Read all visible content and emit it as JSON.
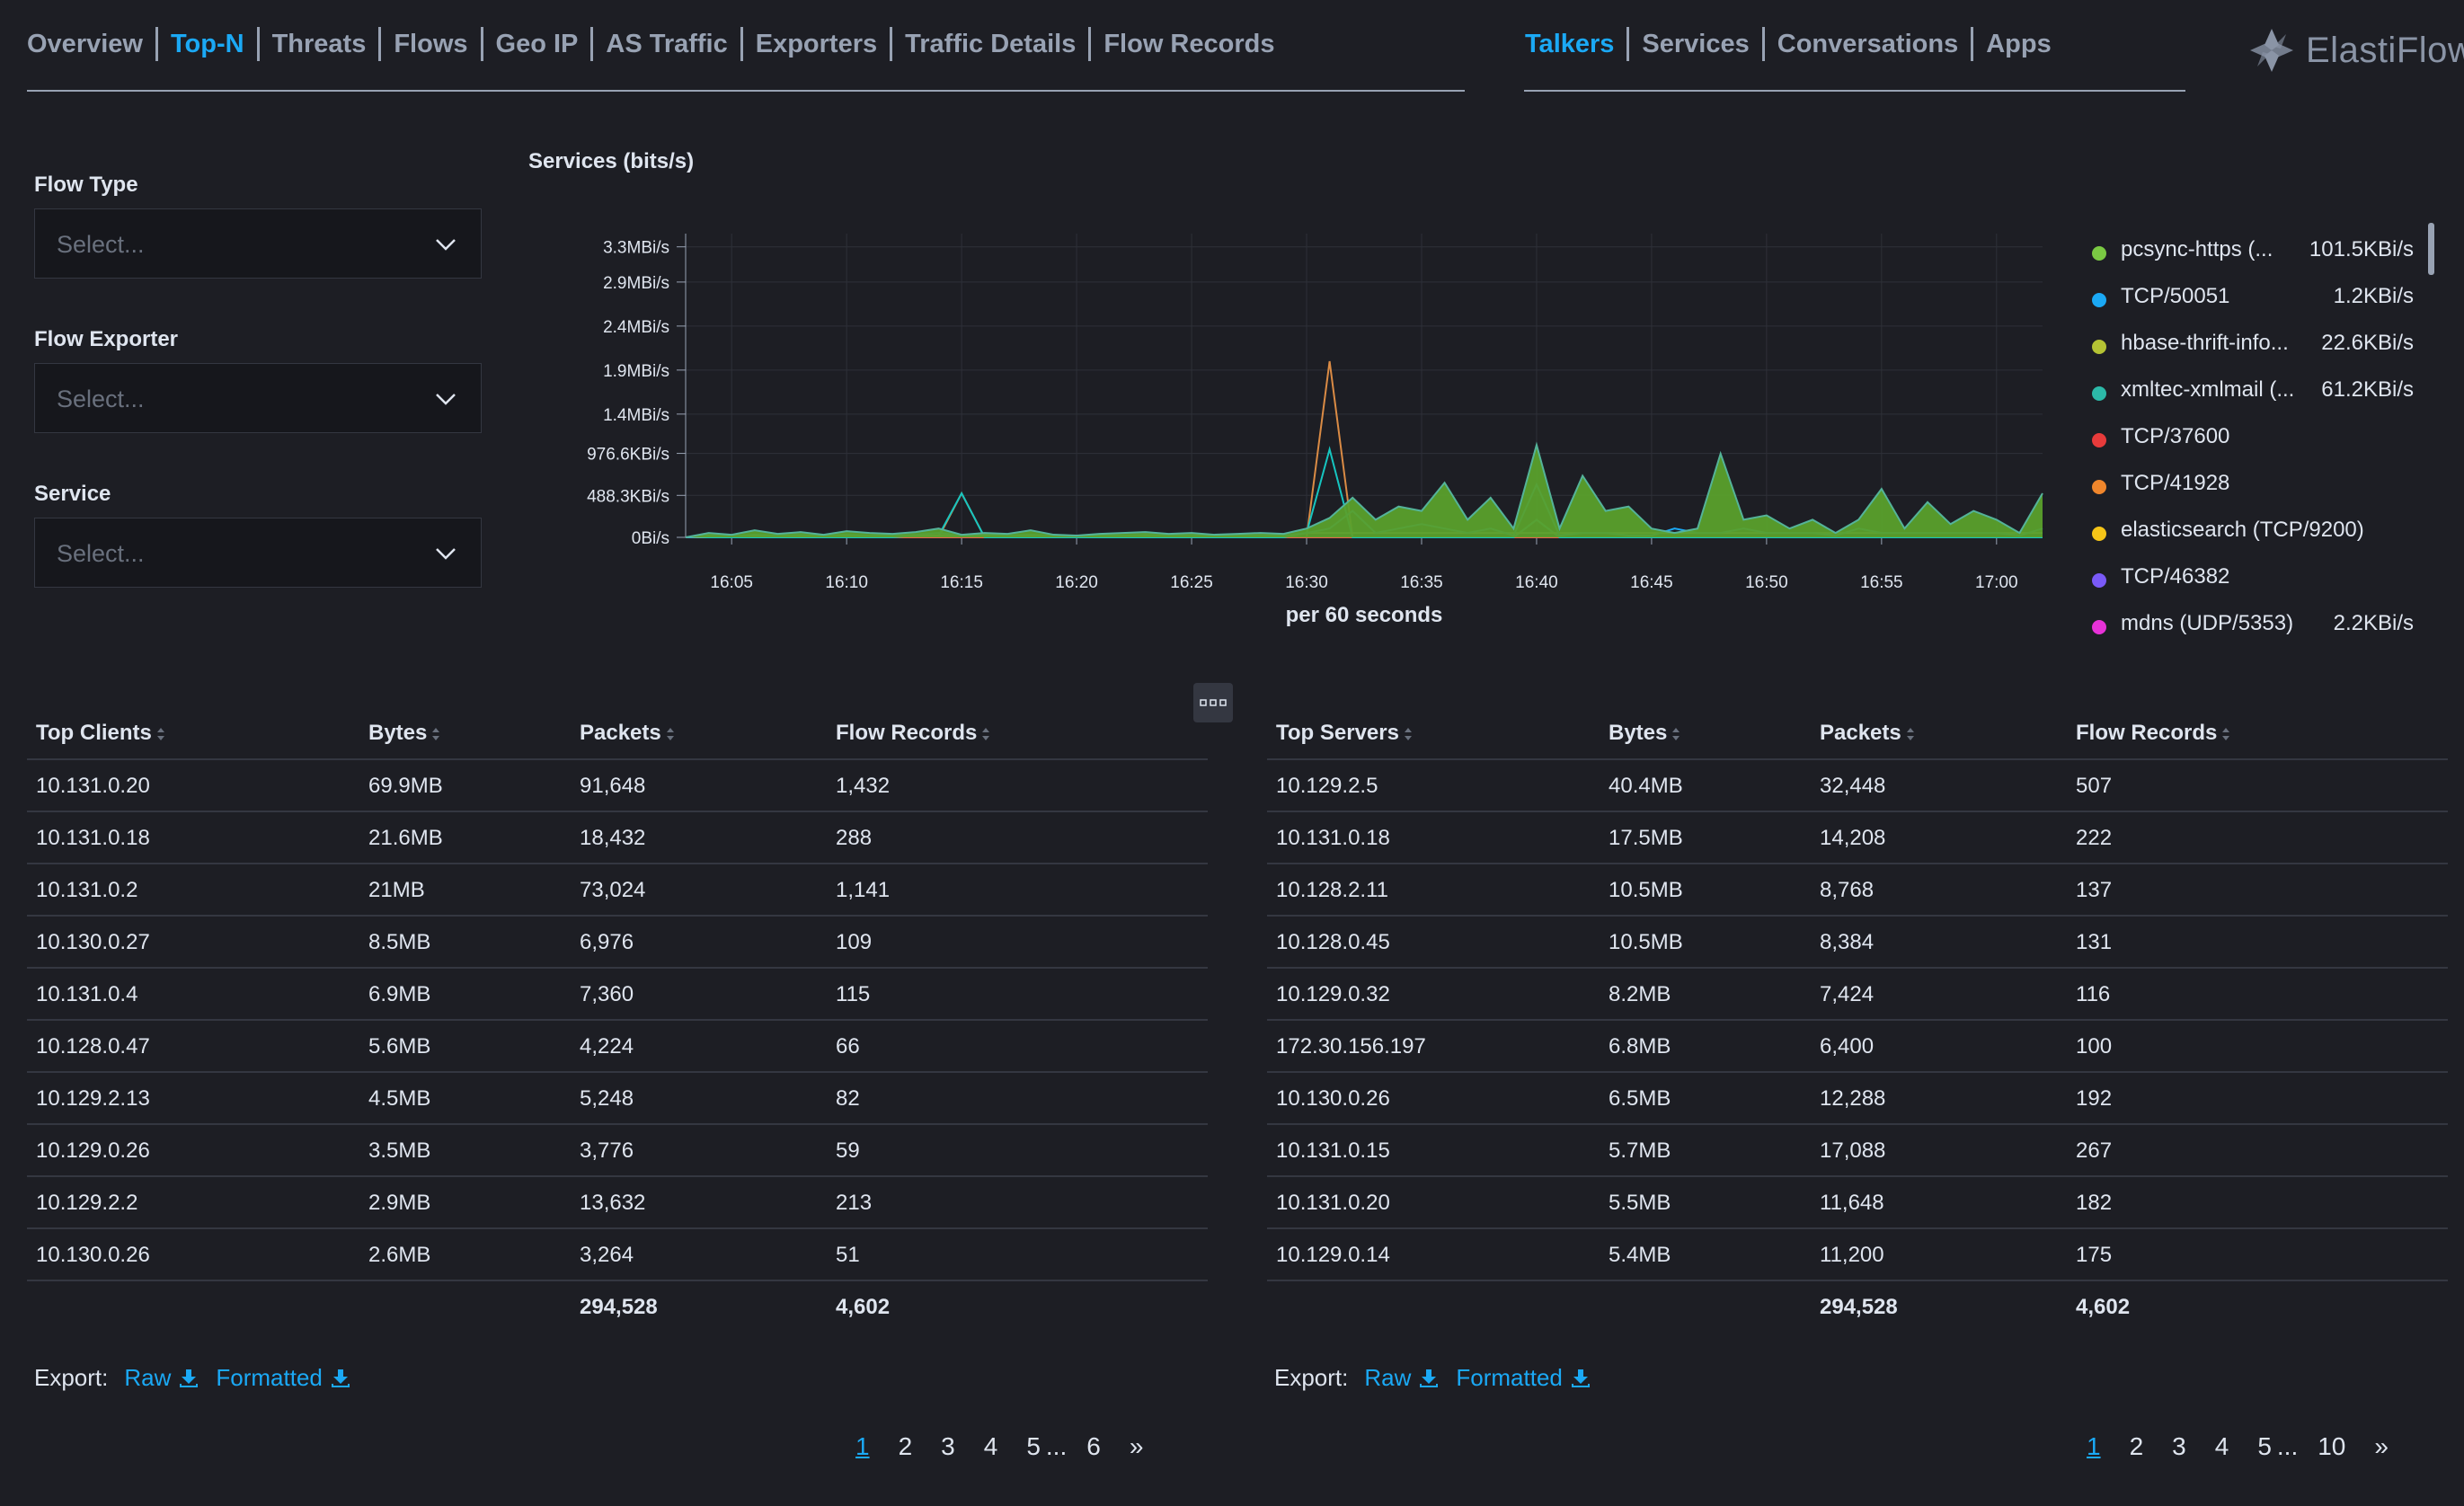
{
  "nav_left": [
    "Overview",
    "Top-N",
    "Threats",
    "Flows",
    "Geo IP",
    "AS Traffic",
    "Exporters",
    "Traffic Details",
    "Flow Records"
  ],
  "nav_right": [
    "Talkers",
    "Services",
    "Conversations",
    "Apps"
  ],
  "brand": "ElastiFlow",
  "filters": [
    {
      "label": "Flow Type",
      "placeholder": "Select..."
    },
    {
      "label": "Flow Exporter",
      "placeholder": "Select..."
    },
    {
      "label": "Service",
      "placeholder": "Select..."
    }
  ],
  "chart_data": {
    "type": "area",
    "title": "Services (bits/s)",
    "xlabel": "per 60 seconds",
    "ylabel": "",
    "y_tick_labels": [
      "0Bi/s",
      "488.3KBi/s",
      "976.6KBi/s",
      "1.4MBi/s",
      "1.9MBi/s",
      "2.4MBi/s",
      "2.9MBi/s",
      "3.3MBi/s"
    ],
    "y_tick_values": [
      0,
      0.4768,
      0.9537,
      1.4,
      1.9,
      2.4,
      2.9,
      3.3
    ],
    "ylim": [
      0,
      3.45
    ],
    "y_unit": "MBi/s",
    "x_tick_labels": [
      "16:05",
      "16:10",
      "16:15",
      "16:20",
      "16:25",
      "16:30",
      "16:35",
      "16:40",
      "16:45",
      "16:50",
      "16:55",
      "17:00"
    ],
    "x_start": "16:03",
    "x_end": "17:02",
    "x": [
      "16:03",
      "16:04",
      "16:05",
      "16:06",
      "16:07",
      "16:08",
      "16:09",
      "16:10",
      "16:11",
      "16:12",
      "16:13",
      "16:14",
      "16:15",
      "16:16",
      "16:17",
      "16:18",
      "16:19",
      "16:20",
      "16:21",
      "16:22",
      "16:23",
      "16:24",
      "16:25",
      "16:26",
      "16:27",
      "16:28",
      "16:29",
      "16:30",
      "16:31",
      "16:32",
      "16:33",
      "16:34",
      "16:35",
      "16:36",
      "16:37",
      "16:38",
      "16:39",
      "16:40",
      "16:41",
      "16:42",
      "16:43",
      "16:44",
      "16:45",
      "16:46",
      "16:47",
      "16:48",
      "16:49",
      "16:50",
      "16:51",
      "16:52",
      "16:53",
      "16:54",
      "16:55",
      "16:56",
      "16:57",
      "16:58",
      "16:59",
      "17:00",
      "17:01",
      "17:02"
    ],
    "grid": true,
    "legend_position": "right",
    "series": [
      {
        "name": "pcsync-https (...",
        "color": "#54b399",
        "values": [
          0,
          0.05,
          0.03,
          0.08,
          0.04,
          0.06,
          0.03,
          0.07,
          0.05,
          0.04,
          0.06,
          0.1,
          0.03,
          0.05,
          0.04,
          0.08,
          0.03,
          0.02,
          0.04,
          0.05,
          0.06,
          0.04,
          0.05,
          0.03,
          0.04,
          0.05,
          0.04,
          0.1,
          0.22,
          0.45,
          0.2,
          0.35,
          0.3,
          0.62,
          0.2,
          0.45,
          0.1,
          1.05,
          0.1,
          0.7,
          0.3,
          0.35,
          0.1,
          0.05,
          0.1,
          0.95,
          0.2,
          0.25,
          0.1,
          0.2,
          0.05,
          0.2,
          0.55,
          0.1,
          0.4,
          0.15,
          0.3,
          0.2,
          0.05,
          0.5
        ]
      },
      {
        "name": "TCP/50051",
        "color": "#1ba9f5",
        "values": [
          0,
          0.02,
          0.01,
          0.03,
          0.02,
          0.03,
          0.02,
          0.03,
          0.02,
          0.02,
          0.03,
          0.05,
          0.02,
          0.03,
          0.02,
          0.03,
          0.02,
          0.01,
          0.02,
          0.02,
          0.03,
          0.02,
          0.02,
          0.02,
          0.02,
          0.02,
          0.02,
          0.05,
          0.1,
          0.3,
          0.05,
          0.1,
          0.15,
          0.1,
          0.05,
          0.1,
          0.02,
          0.6,
          0.02,
          0.05,
          0.05,
          0.02,
          0.02,
          0.1,
          0.05,
          0.05,
          0.1,
          0.05,
          0.05,
          0.05,
          0.02,
          0.1,
          0.05,
          0.05,
          0.05,
          0.05,
          0.05,
          0.05,
          0.02,
          0.1
        ]
      },
      {
        "name": "hbase-thrift-info...",
        "color": "#b9a888",
        "values": [
          0,
          0.01,
          0.01,
          0.02,
          0.01,
          0.01,
          0.01,
          0.02,
          0.01,
          0.01,
          0.02,
          0.02,
          0.01,
          0.02,
          0.01,
          0.02,
          0.01,
          0.01,
          0.01,
          0.01,
          0.02,
          0.01,
          0.01,
          0.01,
          0.01,
          0.01,
          0.01,
          0.05,
          0.05,
          0.05,
          0.05,
          0.05,
          0.05,
          0.05,
          0.05,
          0.05,
          0.05,
          0.05,
          0.05,
          0.05,
          0.05,
          0.05,
          0.05,
          0.05,
          0.05,
          0.05,
          0.05,
          0.05,
          0.05,
          0.05,
          0.05,
          0.05,
          0.05,
          0.05,
          0.05,
          0.05,
          0.05,
          0.05,
          0.05,
          0.05
        ]
      },
      {
        "name": "xmltec-xmlmail (...",
        "color": "#16c5c0",
        "values": [
          0,
          0,
          0,
          0,
          0,
          0,
          0,
          0,
          0,
          0,
          0.02,
          0.02,
          0.5,
          0,
          0,
          0,
          0,
          0,
          0,
          0,
          0,
          0,
          0,
          0,
          0,
          0,
          0,
          0.05,
          1.0,
          0,
          0,
          0,
          0,
          0,
          0,
          0,
          0,
          0.2,
          0,
          0,
          0,
          0,
          0,
          0,
          0,
          0,
          0,
          0,
          0,
          0,
          0,
          0,
          0,
          0,
          0,
          0,
          0,
          0,
          0,
          0
        ]
      },
      {
        "name": "TCP/37600",
        "color": "#e7664c",
        "values": [
          0,
          0,
          0,
          0,
          0,
          0,
          0,
          0,
          0,
          0,
          0,
          0,
          0,
          0,
          0,
          0,
          0,
          0,
          0,
          0,
          0,
          0,
          0,
          0,
          0,
          0,
          0,
          0,
          0,
          0,
          0,
          0,
          0,
          0,
          0,
          0,
          0,
          0,
          0,
          0,
          0,
          0,
          0,
          0,
          0,
          0,
          0,
          0,
          0,
          0,
          0,
          0,
          0,
          0,
          0,
          0,
          0,
          0,
          0,
          0
        ]
      },
      {
        "name": "TCP/41928",
        "color": "#da8b45",
        "values": [
          0,
          0,
          0,
          0,
          0,
          0,
          0,
          0,
          0,
          0,
          0,
          0,
          0.5,
          0,
          0,
          0,
          0,
          0,
          0,
          0,
          0,
          0,
          0,
          0,
          0,
          0,
          0,
          0,
          2.0,
          0,
          0,
          0,
          0,
          0,
          0,
          0,
          0,
          0,
          0,
          0,
          0,
          0,
          0,
          0,
          0,
          0,
          0,
          0,
          0,
          0,
          0,
          0,
          0,
          0,
          0,
          0,
          0,
          0,
          0,
          0
        ]
      },
      {
        "name": "elasticsearch (TCP/9200)",
        "color": "#d6bf57",
        "values": [
          0,
          0,
          0,
          0,
          0,
          0,
          0,
          0,
          0,
          0,
          0,
          0,
          0,
          0,
          0,
          0,
          0,
          0,
          0,
          0,
          0,
          0,
          0,
          0,
          0,
          0,
          0,
          0,
          0,
          0,
          0,
          0,
          0,
          0,
          0,
          0,
          0,
          0,
          0,
          0,
          0,
          0,
          0,
          0,
          0,
          0,
          0,
          0,
          0,
          0,
          0,
          0,
          0,
          0,
          0,
          0,
          0,
          0,
          0,
          0
        ]
      },
      {
        "name": "TCP/46382",
        "color": "#6092c0",
        "values": [
          0,
          0,
          0,
          0,
          0,
          0,
          0,
          0,
          0,
          0,
          0,
          0,
          0,
          0,
          0,
          0,
          0,
          0,
          0,
          0,
          0,
          0,
          0,
          0,
          0,
          0,
          0,
          0,
          0,
          0,
          0,
          0,
          0,
          0,
          0,
          0,
          0,
          0,
          0,
          0,
          0,
          0,
          0,
          0,
          0,
          0,
          0,
          0,
          0,
          0,
          0,
          0,
          0,
          0,
          0,
          0,
          0,
          0,
          0,
          0
        ]
      },
      {
        "name": "mdns (UDP/5353)",
        "color": "#d36086",
        "values": [
          0,
          0,
          0,
          0,
          0,
          0,
          0,
          0,
          0,
          0,
          0,
          0,
          0,
          0,
          0,
          0,
          0,
          0,
          0,
          0,
          0,
          0,
          0,
          0,
          0,
          0,
          0,
          0,
          0,
          0,
          0,
          0,
          0,
          0,
          0,
          0,
          0,
          0.2,
          0,
          0,
          0,
          0,
          0,
          0,
          0,
          0,
          0,
          0,
          0,
          0,
          0,
          0,
          0,
          0,
          0,
          0,
          0,
          0,
          0,
          0
        ]
      }
    ]
  },
  "legend": [
    {
      "name": "pcsync-https (...",
      "value": "101.5KBi/s",
      "color": "#7ac943"
    },
    {
      "name": "TCP/50051",
      "value": "1.2KBi/s",
      "color": "#1ba9f5"
    },
    {
      "name": "hbase-thrift-info...",
      "value": "22.6KBi/s",
      "color": "#b5c334"
    },
    {
      "name": "xmltec-xmlmail (...",
      "value": "61.2KBi/s",
      "color": "#2cb9a8"
    },
    {
      "name": "TCP/37600",
      "value": "",
      "color": "#e83b3b"
    },
    {
      "name": "TCP/41928",
      "value": "",
      "color": "#f0862c"
    },
    {
      "name": "elasticsearch (TCP/9200)",
      "value": "",
      "color": "#f5c518"
    },
    {
      "name": "TCP/46382",
      "value": "",
      "color": "#7a5af8"
    },
    {
      "name": "mdns (UDP/5353)",
      "value": "2.2KBi/s",
      "color": "#e832d8"
    }
  ],
  "clients_table": {
    "columns": [
      "Top Clients",
      "Bytes",
      "Packets",
      "Flow Records"
    ],
    "rows": [
      [
        "10.131.0.20",
        "69.9MB",
        "91,648",
        "1,432"
      ],
      [
        "10.131.0.18",
        "21.6MB",
        "18,432",
        "288"
      ],
      [
        "10.131.0.2",
        "21MB",
        "73,024",
        "1,141"
      ],
      [
        "10.130.0.27",
        "8.5MB",
        "6,976",
        "109"
      ],
      [
        "10.131.0.4",
        "6.9MB",
        "7,360",
        "115"
      ],
      [
        "10.128.0.47",
        "5.6MB",
        "4,224",
        "66"
      ],
      [
        "10.129.2.13",
        "4.5MB",
        "5,248",
        "82"
      ],
      [
        "10.129.0.26",
        "3.5MB",
        "3,776",
        "59"
      ],
      [
        "10.129.2.2",
        "2.9MB",
        "13,632",
        "213"
      ],
      [
        "10.130.0.26",
        "2.6MB",
        "3,264",
        "51"
      ]
    ],
    "totals": {
      "packets": "294,528",
      "flow_records": "4,602"
    }
  },
  "servers_table": {
    "columns": [
      "Top Servers",
      "Bytes",
      "Packets",
      "Flow Records"
    ],
    "rows": [
      [
        "10.129.2.5",
        "40.4MB",
        "32,448",
        "507"
      ],
      [
        "10.131.0.18",
        "17.5MB",
        "14,208",
        "222"
      ],
      [
        "10.128.2.11",
        "10.5MB",
        "8,768",
        "137"
      ],
      [
        "10.128.0.45",
        "10.5MB",
        "8,384",
        "131"
      ],
      [
        "10.129.0.32",
        "8.2MB",
        "7,424",
        "116"
      ],
      [
        "172.30.156.197",
        "6.8MB",
        "6,400",
        "100"
      ],
      [
        "10.130.0.26",
        "6.5MB",
        "12,288",
        "192"
      ],
      [
        "10.131.0.15",
        "5.7MB",
        "17,088",
        "267"
      ],
      [
        "10.131.0.20",
        "5.5MB",
        "11,648",
        "182"
      ],
      [
        "10.129.0.14",
        "5.4MB",
        "11,200",
        "175"
      ]
    ],
    "totals": {
      "packets": "294,528",
      "flow_records": "4,602"
    }
  },
  "export": {
    "label": "Export:",
    "raw": "Raw",
    "formatted": "Formatted"
  },
  "pager_left": {
    "pages": [
      "1",
      "2",
      "3",
      "4",
      "5"
    ],
    "ellipsis": "...",
    "last": "6",
    "next": "»"
  },
  "pager_right": {
    "pages": [
      "1",
      "2",
      "3",
      "4",
      "5"
    ],
    "ellipsis": "...",
    "last": "10",
    "next": "»"
  }
}
